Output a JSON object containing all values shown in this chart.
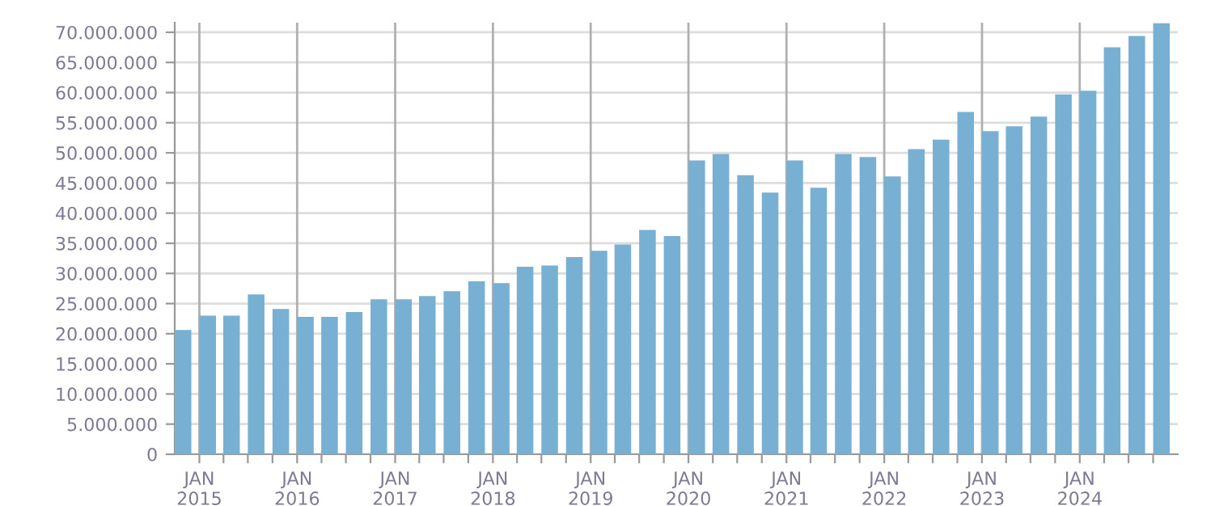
{
  "chart_data": {
    "type": "bar",
    "color": "#77b0d3",
    "grid": true,
    "x": [
      "2014-11",
      "2015-02",
      "2015-05",
      "2015-08",
      "2015-11",
      "2016-02",
      "2016-05",
      "2016-08",
      "2016-11",
      "2017-02",
      "2017-05",
      "2017-08",
      "2017-11",
      "2018-02",
      "2018-05",
      "2018-08",
      "2018-11",
      "2019-02",
      "2019-05",
      "2019-08",
      "2019-11",
      "2020-02",
      "2020-05",
      "2020-08",
      "2020-11",
      "2021-02",
      "2021-05",
      "2021-08",
      "2021-11",
      "2022-02",
      "2022-05",
      "2022-08",
      "2022-11",
      "2023-02",
      "2023-05",
      "2023-08",
      "2023-11",
      "2024-02",
      "2024-05",
      "2024-08",
      "2024-11"
    ],
    "values": [
      20600000,
      23000000,
      23000000,
      26500000,
      24100000,
      22800000,
      22800000,
      23600000,
      25700000,
      25700000,
      26250000,
      27050000,
      28700000,
      28400000,
      31100000,
      31300000,
      32700000,
      33750000,
      34800000,
      37200000,
      36200000,
      48750000,
      49800000,
      46300000,
      43400000,
      48750000,
      44200000,
      49800000,
      49300000,
      46100000,
      50600000,
      52200000,
      56800000,
      53600000,
      54400000,
      56000000,
      59700000,
      60300000,
      67500000,
      69400000,
      71500000
    ],
    "xlim": [
      "2014-10",
      "2025-01"
    ],
    "xticks": [
      {
        "value": "2015-01",
        "label": "JAN\n2015"
      },
      {
        "value": "2015-04",
        "label": null
      },
      {
        "value": "2015-07",
        "label": null
      },
      {
        "value": "2015-10",
        "label": null
      },
      {
        "value": "2016-01",
        "label": "JAN\n2016"
      },
      {
        "value": "2016-04",
        "label": null
      },
      {
        "value": "2016-07",
        "label": null
      },
      {
        "value": "2016-10",
        "label": null
      },
      {
        "value": "2017-01",
        "label": "JAN\n2017"
      },
      {
        "value": "2017-04",
        "label": null
      },
      {
        "value": "2017-07",
        "label": null
      },
      {
        "value": "2017-10",
        "label": null
      },
      {
        "value": "2018-01",
        "label": "JAN\n2018"
      },
      {
        "value": "2018-04",
        "label": null
      },
      {
        "value": "2018-07",
        "label": null
      },
      {
        "value": "2018-10",
        "label": null
      },
      {
        "value": "2019-01",
        "label": "JAN\n2019"
      },
      {
        "value": "2019-04",
        "label": null
      },
      {
        "value": "2019-07",
        "label": null
      },
      {
        "value": "2019-10",
        "label": null
      },
      {
        "value": "2020-01",
        "label": "JAN\n2020"
      },
      {
        "value": "2020-04",
        "label": null
      },
      {
        "value": "2020-07",
        "label": null
      },
      {
        "value": "2020-10",
        "label": null
      },
      {
        "value": "2021-01",
        "label": "JAN\n2021"
      },
      {
        "value": "2021-04",
        "label": null
      },
      {
        "value": "2021-07",
        "label": null
      },
      {
        "value": "2021-10",
        "label": null
      },
      {
        "value": "2022-01",
        "label": "JAN\n2022"
      },
      {
        "value": "2022-04",
        "label": null
      },
      {
        "value": "2022-07",
        "label": null
      },
      {
        "value": "2022-10",
        "label": null
      },
      {
        "value": "2023-01",
        "label": "JAN\n2023"
      },
      {
        "value": "2023-04",
        "label": null
      },
      {
        "value": "2023-07",
        "label": null
      },
      {
        "value": "2023-10",
        "label": null
      },
      {
        "value": "2024-01",
        "label": "JAN\n2024"
      },
      {
        "value": "2024-04",
        "label": null
      },
      {
        "value": "2024-07",
        "label": null
      },
      {
        "value": "2024-10",
        "label": null
      }
    ],
    "ylim": [
      0,
      71600000
    ],
    "yticks": [
      0,
      {
        "value": 5000000,
        "label": "5.000.000"
      },
      {
        "value": 10000000,
        "label": "10.000.000"
      },
      {
        "value": 15000000,
        "label": "15.000.000"
      },
      {
        "value": 20000000,
        "label": "20.000.000"
      },
      {
        "value": 25000000,
        "label": "25.000.000"
      },
      {
        "value": 30000000,
        "label": "30.000.000"
      },
      {
        "value": 35000000,
        "label": "35.000.000"
      },
      {
        "value": 40000000,
        "label": "40.000.000"
      },
      {
        "value": 45000000,
        "label": "45.000.000"
      },
      {
        "value": 50000000,
        "label": "50.000.000"
      },
      {
        "value": 55000000,
        "label": "55.000.000"
      },
      {
        "value": 60000000,
        "label": "60.000.000"
      },
      {
        "value": 65000000,
        "label": "65.000.000"
      },
      {
        "value": 70000000,
        "label": "70.000.000"
      }
    ]
  }
}
